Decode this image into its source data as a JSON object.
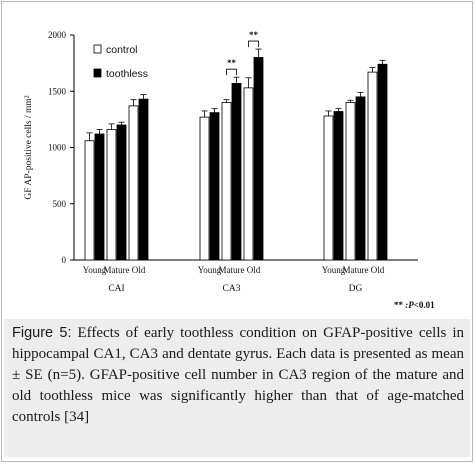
{
  "chart_data": {
    "type": "bar",
    "ylabel": "GF AP-positive cells / mm²",
    "ylim": [
      0,
      2000
    ],
    "yticks": [
      0,
      500,
      1000,
      1500,
      2000
    ],
    "grid": false,
    "legend_position": "top-left",
    "legend": [
      {
        "name": "control",
        "color": "#ffffff"
      },
      {
        "name": "toothless",
        "color": "#000000"
      }
    ],
    "groups": [
      {
        "name": "CAI",
        "tick_labels": [
          "Young",
          "Mature",
          "Old"
        ],
        "control": [
          1060,
          1160,
          1370
        ],
        "control_err": [
          70,
          50,
          55
        ],
        "toothless": [
          1120,
          1200,
          1430
        ],
        "toothless_err": [
          40,
          25,
          40
        ]
      },
      {
        "name": "CA3",
        "tick_labels": [
          "Young",
          "Mature",
          "Old"
        ],
        "control": [
          1270,
          1400,
          1530
        ],
        "control_err": [
          55,
          25,
          90
        ],
        "toothless": [
          1310,
          1570,
          1800
        ],
        "toothless_err": [
          35,
          55,
          75
        ]
      },
      {
        "name": "DG",
        "tick_labels": [
          "Young",
          "Mature",
          "Old"
        ],
        "control": [
          1280,
          1400,
          1670
        ],
        "control_err": [
          45,
          20,
          40
        ],
        "toothless": [
          1320,
          1450,
          1740
        ],
        "toothless_err": [
          25,
          40,
          35
        ]
      }
    ],
    "annotations": [
      {
        "group": "CA3",
        "age": "Mature",
        "text": "**"
      },
      {
        "group": "CA3",
        "age": "Old",
        "text": "**"
      }
    ],
    "significance_note": {
      "stars": "**",
      "p_label": ":P",
      "p_value": "<0.01"
    }
  },
  "caption": {
    "label": "Figure 5:",
    "text": "Effects of early toothless condition on GFAP-positive cells in hippocampal CA1, CA3 and dentate gyrus. Each data is presented as mean ± SE (n=5). GFAP-positive cell number in CA3 region of the mature and old toothless mice was significantly higher than that of age-matched controls [34]"
  }
}
